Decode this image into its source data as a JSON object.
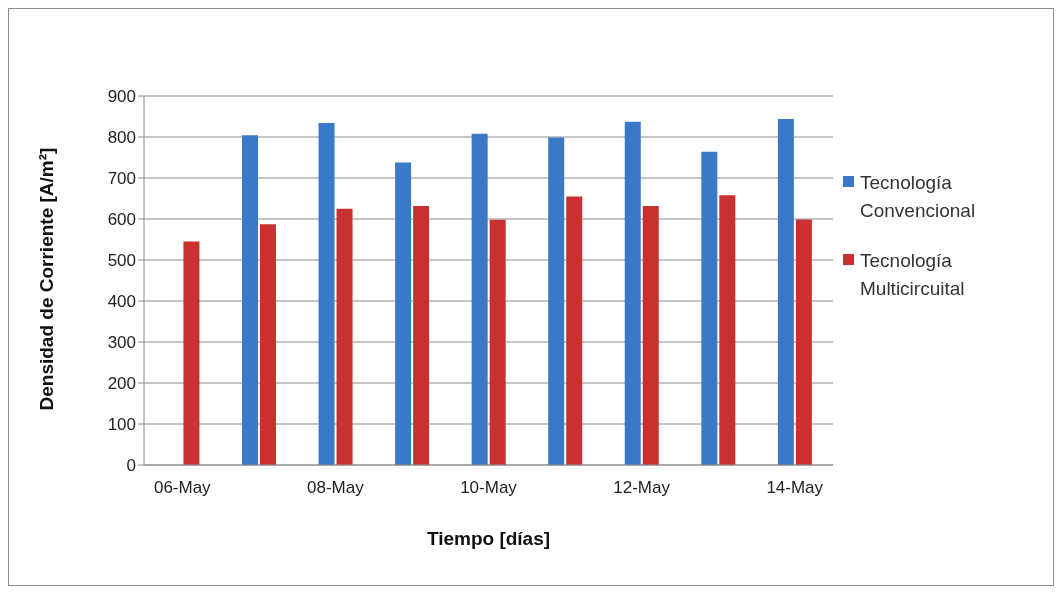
{
  "chart_data": {
    "type": "bar",
    "xlabel": "Tiempo [días]",
    "ylabel": "Densidad de Corriente [A/m²]",
    "categories": [
      "06-May",
      null,
      "08-May",
      null,
      "10-May",
      null,
      "12-May",
      null,
      "14-May"
    ],
    "series": [
      {
        "name": "Tecnología Convencional",
        "color": "#3a78c8",
        "values": [
          null,
          804,
          834,
          738,
          808,
          799,
          837,
          764,
          844
        ]
      },
      {
        "name": "Tecnología Multicircuital",
        "color": "#c8312f",
        "values": [
          545,
          587,
          625,
          632,
          598,
          655,
          632,
          658,
          599
        ]
      }
    ],
    "ylim": [
      0,
      900
    ],
    "yticks": [
      0,
      100,
      200,
      300,
      400,
      500,
      600,
      700,
      800,
      900
    ],
    "grid": "y",
    "legend": "right"
  }
}
